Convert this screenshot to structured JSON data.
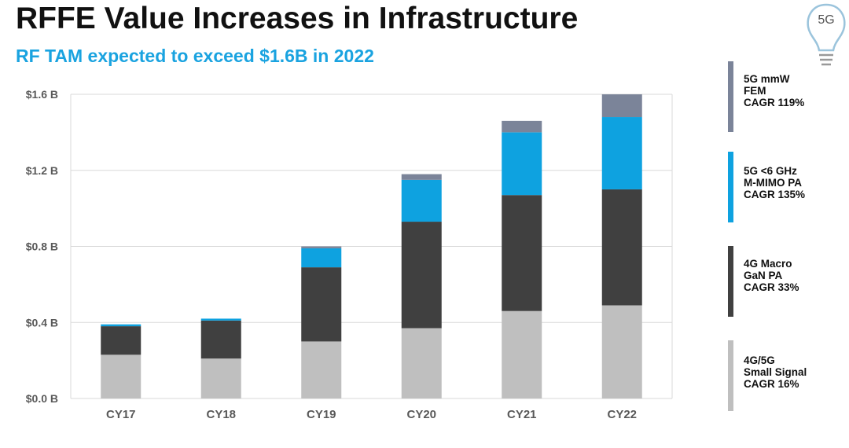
{
  "title": "RFFE Value Increases in Infrastructure",
  "subtitle": "RF TAM expected to exceed $1.6B in 2022",
  "logo": {
    "icon": "lightbulb-icon",
    "label": "5G"
  },
  "colors": {
    "small_signal": "#BFBFBF",
    "macro_gan": "#404040",
    "mimo": "#0EA2E0",
    "mmw": "#7B8499",
    "grid": "#D9D9D9"
  },
  "chart_data": {
    "type": "bar",
    "stacked": true,
    "categories": [
      "CY17",
      "CY18",
      "CY19",
      "CY20",
      "CY21",
      "CY22"
    ],
    "y_ticks": [
      "$0.0 B",
      "$0.4 B",
      "$0.8 B",
      "$1.2 B",
      "$1.6 B"
    ],
    "ylim": [
      0,
      1.6
    ],
    "grid": true,
    "legend_position": "right",
    "series": [
      {
        "name": "4G/5G Small Signal",
        "color": "#BFBFBF",
        "values": [
          0.23,
          0.21,
          0.3,
          0.37,
          0.46,
          0.49
        ]
      },
      {
        "name": "4G Macro GaN PA",
        "color": "#404040",
        "values": [
          0.15,
          0.2,
          0.39,
          0.56,
          0.61,
          0.61
        ]
      },
      {
        "name": "5G <6 GHz M-MIMO PA",
        "color": "#0EA2E0",
        "values": [
          0.01,
          0.01,
          0.1,
          0.22,
          0.33,
          0.38
        ]
      },
      {
        "name": "5G mmW FEM",
        "color": "#7B8499",
        "values": [
          0.0,
          0.0,
          0.01,
          0.03,
          0.06,
          0.12
        ]
      }
    ]
  },
  "legend": [
    {
      "lines": [
        "5G mmW",
        "FEM",
        "CAGR 119%"
      ],
      "color": "#7B8499"
    },
    {
      "lines": [
        "5G <6 GHz",
        "M-MIMO  PA",
        "CAGR 135%"
      ],
      "color": "#0EA2E0"
    },
    {
      "lines": [
        "4G Macro",
        "GaN PA",
        "CAGR 33%"
      ],
      "color": "#404040"
    },
    {
      "lines": [
        "4G/5G",
        "Small Signal",
        "CAGR 16%"
      ],
      "color": "#BFBFBF"
    }
  ]
}
